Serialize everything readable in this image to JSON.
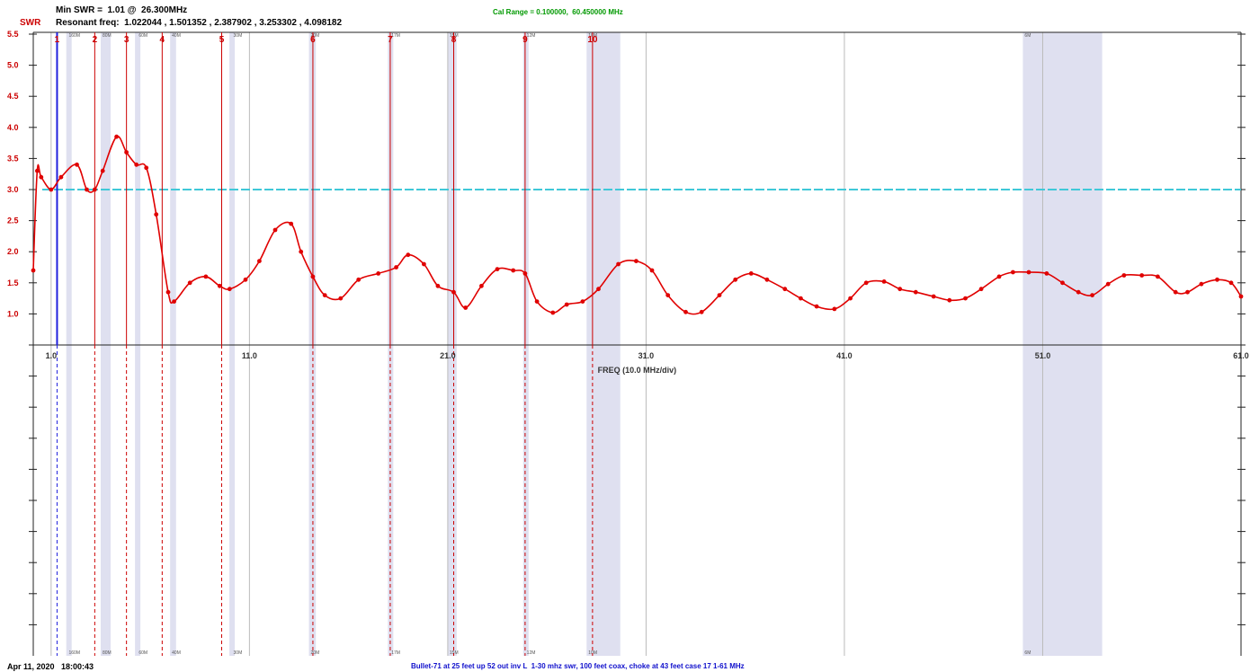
{
  "header": {
    "swr_label": "SWR",
    "min_swr_text": "Min SWR =  1.01 @  26.300MHz",
    "resonant_text": "Resonant freq:  1.022044 , 1.501352 , 2.387902 , 3.253302 , 4.098182",
    "cal_range_text": "Cal Range = 0.100000,  60.450000 MHz"
  },
  "footer": {
    "timestamp": "Apr 11, 2020   18:00:43",
    "description": "Bullet-71 at 25 feet up 52 out inv L  1-30 mhz swr, 100 feet coax, choke at 43 feet case 17 1-61 MHz"
  },
  "colors": {
    "curve": "#e00000",
    "threshold": "#40c8d8",
    "band": "#dfe0f0",
    "marker": "#cc0000",
    "marker1": "#2020dd",
    "header_green": "#009900",
    "footer_blue": "#1010cc",
    "swr_label": "#cc0000"
  },
  "chart_data": {
    "type": "line",
    "xlabel": "FREQ (10.0 MHz/div)",
    "ylabel": "SWR",
    "xlim": [
      0.1,
      61.0
    ],
    "ylim": [
      0.5,
      5.5
    ],
    "x_ticks": [
      1.0,
      11.0,
      21.0,
      31.0,
      41.0,
      51.0,
      61.0
    ],
    "x_tick_labels": [
      "1.0",
      "11.0",
      "21.0",
      "31.0",
      "41.0",
      "51.0",
      "61.0"
    ],
    "y_ticks": [
      1.0,
      1.5,
      2.0,
      2.5,
      3.0,
      3.5,
      4.0,
      4.5,
      5.0,
      5.5
    ],
    "y_tick_labels": [
      "1.0",
      "1.5",
      "2.0",
      "2.5",
      "3.0",
      "3.5",
      "4.0",
      "4.5",
      "5.0",
      "5.5"
    ],
    "threshold": 3.0,
    "grid": true,
    "bands": [
      {
        "top": "160M",
        "bottom": "160M",
        "start": 1.8,
        "end": 2.0
      },
      {
        "top": "80M",
        "bottom": "80M",
        "start": 3.5,
        "end": 4.0
      },
      {
        "top": "60M",
        "bottom": "60M",
        "start": 5.33,
        "end": 5.4
      },
      {
        "top": "40M",
        "bottom": "40M",
        "start": 7.0,
        "end": 7.3
      },
      {
        "top": "30M",
        "bottom": "30M",
        "start": 10.1,
        "end": 10.15
      },
      {
        "top": "20M",
        "bottom": "20M",
        "start": 14.0,
        "end": 14.35
      },
      {
        "top": "17M",
        "bottom": "17M",
        "start": 18.068,
        "end": 18.168
      },
      {
        "top": "15M",
        "bottom": "15M",
        "start": 21.0,
        "end": 21.45
      },
      {
        "top": "12M",
        "bottom": "12M",
        "start": 24.89,
        "end": 24.99
      },
      {
        "top": "10M",
        "bottom": "10M",
        "start": 28.0,
        "end": 29.7
      },
      {
        "top": "6M",
        "bottom": "6M",
        "start": 50.0,
        "end": 54.0
      }
    ],
    "markers": [
      {
        "label": "1",
        "freq": 1.3
      },
      {
        "label": "2",
        "freq": 3.2
      },
      {
        "label": "3",
        "freq": 4.8
      },
      {
        "label": "4",
        "freq": 6.6
      },
      {
        "label": "5",
        "freq": 9.6
      },
      {
        "label": "6",
        "freq": 14.2
      },
      {
        "label": "7",
        "freq": 18.1
      },
      {
        "label": "8",
        "freq": 21.3
      },
      {
        "label": "9",
        "freq": 24.9
      },
      {
        "label": "10",
        "freq": 28.3
      }
    ],
    "series": [
      {
        "x": [
          0.1,
          0.3,
          0.5,
          1.0,
          1.5,
          2.3,
          2.8,
          3.2,
          3.6,
          4.3,
          4.8,
          5.3,
          5.8,
          6.3,
          6.9,
          7.2,
          8.0,
          8.8,
          9.5,
          10.0,
          10.8,
          11.5,
          12.3,
          13.1,
          13.6,
          14.2,
          14.8,
          15.6,
          16.5,
          17.5,
          18.4,
          19.0,
          19.8,
          20.5,
          21.3,
          21.9,
          22.7,
          23.5,
          24.3,
          24.9,
          25.5,
          26.3,
          27.0,
          27.8,
          28.6,
          29.6,
          30.5,
          31.3,
          32.1,
          33.0,
          33.8,
          34.7,
          35.5,
          36.3,
          37.1,
          38.0,
          38.8,
          39.6,
          40.5,
          41.3,
          42.1,
          43.0,
          43.8,
          44.6,
          45.5,
          46.3,
          47.1,
          47.9,
          48.8,
          49.5,
          50.3,
          51.2,
          52.0,
          52.8,
          53.5,
          54.3,
          55.1,
          56.0,
          56.8,
          57.7,
          58.3,
          59.0,
          59.8,
          60.5,
          61.0
        ],
        "y": [
          1.7,
          3.3,
          3.2,
          3.0,
          3.2,
          3.4,
          3.0,
          3.0,
          3.3,
          3.85,
          3.6,
          3.4,
          3.35,
          2.6,
          1.35,
          1.2,
          1.5,
          1.6,
          1.45,
          1.4,
          1.55,
          1.85,
          2.35,
          2.45,
          2.0,
          1.6,
          1.3,
          1.25,
          1.55,
          1.65,
          1.75,
          1.95,
          1.8,
          1.45,
          1.35,
          1.1,
          1.45,
          1.72,
          1.7,
          1.65,
          1.2,
          1.02,
          1.15,
          1.2,
          1.4,
          1.8,
          1.85,
          1.7,
          1.3,
          1.03,
          1.03,
          1.3,
          1.55,
          1.65,
          1.55,
          1.4,
          1.25,
          1.12,
          1.08,
          1.25,
          1.5,
          1.52,
          1.4,
          1.35,
          1.28,
          1.22,
          1.25,
          1.4,
          1.6,
          1.67,
          1.67,
          1.65,
          1.5,
          1.35,
          1.3,
          1.48,
          1.62,
          1.62,
          1.6,
          1.35,
          1.35,
          1.48,
          1.55,
          1.5,
          1.28
        ]
      }
    ]
  }
}
